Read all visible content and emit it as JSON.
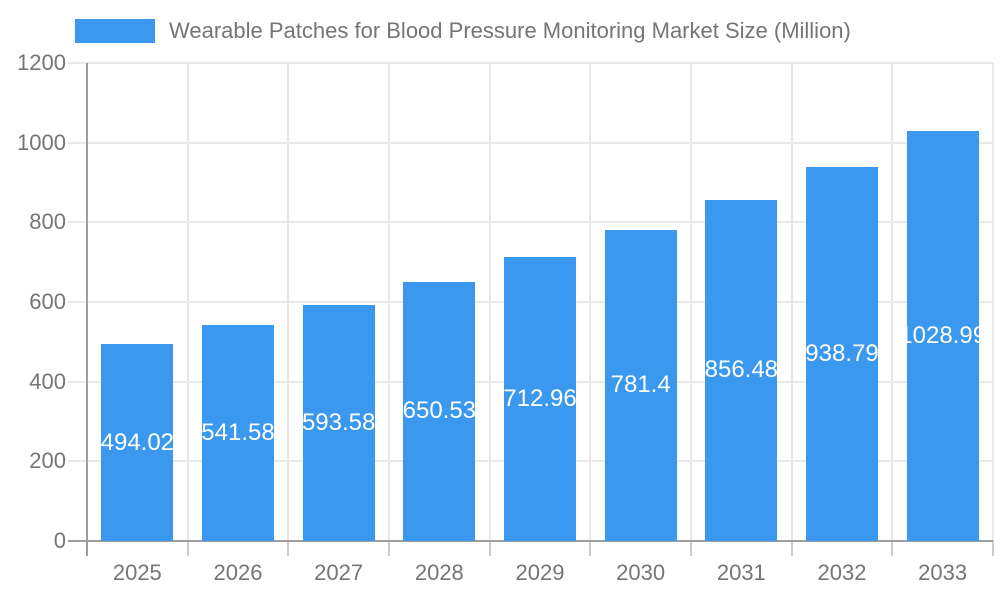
{
  "chart_data": {
    "type": "bar",
    "title": "Wearable Patches for Blood Pressure Monitoring Market Size (Million)",
    "categories": [
      "2025",
      "2026",
      "2027",
      "2028",
      "2029",
      "2030",
      "2031",
      "2032",
      "2033"
    ],
    "values": [
      494.02,
      541.58,
      593.58,
      650.53,
      712.96,
      781.4,
      856.48,
      938.79,
      1028.99
    ],
    "bar_labels": [
      "494.02",
      "541.58",
      "593.58",
      "650.53",
      "712.96",
      "781.4",
      "856.48",
      "938.79",
      "1028.99"
    ],
    "xlabel": "",
    "ylabel": "",
    "ylim": [
      0,
      1200
    ],
    "y_ticks": [
      0,
      200,
      400,
      600,
      800,
      1000,
      1200
    ],
    "grid": true,
    "legend_position": "top",
    "colors": {
      "bar": "#3b98ef",
      "axis_text": "#757575",
      "bar_label_text": "#ffffff",
      "grid_line": "#e8e8e8",
      "axis_line": "#9e9e9e",
      "tick_line": "#cccccc",
      "background": "#ffffff"
    }
  }
}
